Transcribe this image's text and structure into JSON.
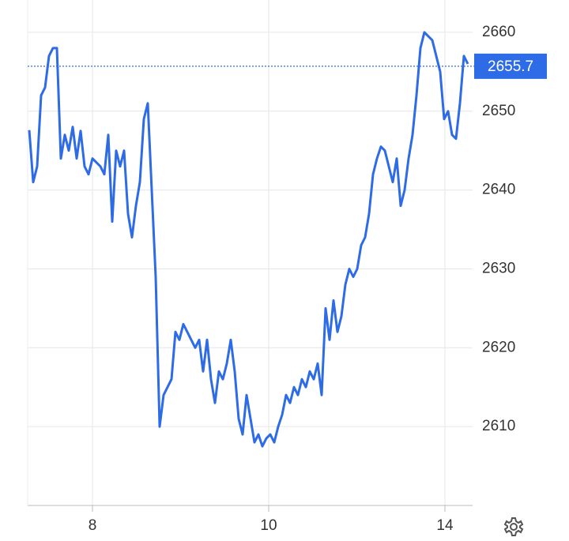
{
  "chart_data": {
    "type": "line",
    "color": "#2e6be6",
    "grid": true,
    "values": [
      2647.6,
      2641,
      2643,
      2652,
      2653,
      2657,
      2658,
      2658,
      2644,
      2647,
      2645,
      2648,
      2644,
      2647.5,
      2643,
      2642,
      2644,
      2643.5,
      2643,
      2642,
      2647,
      2636,
      2645,
      2643,
      2645,
      2637,
      2634,
      2638,
      2641,
      2649,
      2651,
      2640,
      2629,
      2610,
      2614,
      2615,
      2616,
      2622,
      2621,
      2623,
      2622,
      2621,
      2620,
      2621,
      2617,
      2621,
      2616,
      2613,
      2617,
      2616,
      2618,
      2621,
      2617,
      2611,
      2609,
      2614,
      2611,
      2608,
      2609,
      2607.5,
      2608.5,
      2609,
      2608,
      2610,
      2611.5,
      2614,
      2613,
      2615,
      2614,
      2616,
      2615,
      2617,
      2616,
      2618,
      2614,
      2625,
      2621,
      2626,
      2622,
      2624,
      2628,
      2630,
      2629,
      2630,
      2633,
      2634,
      2637,
      2642,
      2644,
      2645.5,
      2645,
      2643,
      2641,
      2644,
      2638,
      2640,
      2644,
      2647,
      2652,
      2658,
      2660,
      2659.5,
      2659,
      2657,
      2655,
      2649,
      2650,
      2647,
      2646.5,
      2651,
      2657,
      2656
    ],
    "xlim": [
      -0.4,
      112.2
    ],
    "xticks": [
      {
        "value": 16,
        "label": "8"
      },
      {
        "value": 60.6,
        "label": "10"
      },
      {
        "value": 105.2,
        "label": "14"
      }
    ],
    "ylim": [
      2600,
      2664.1
    ],
    "yticks": [
      2610,
      2620,
      2630,
      2640,
      2650,
      2660
    ],
    "last_value": 2655.7
  }
}
